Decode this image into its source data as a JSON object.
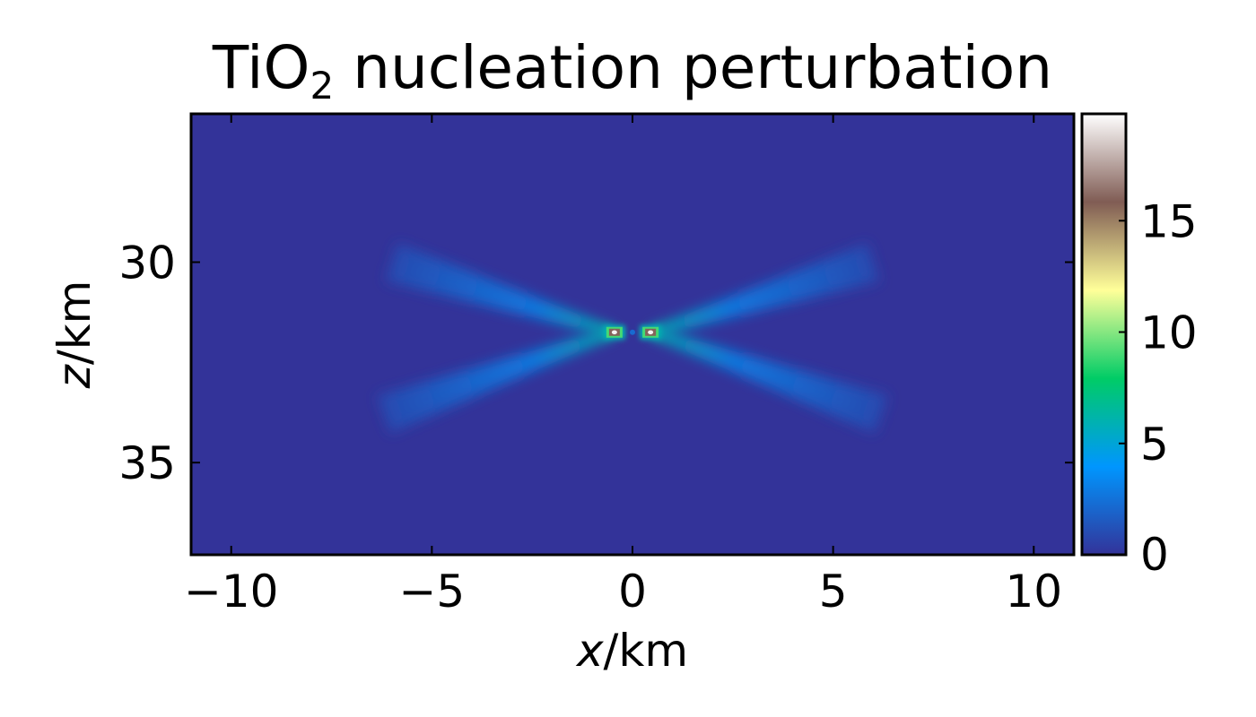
{
  "chart_data": {
    "type": "heatmap",
    "title": {
      "prefix": "TiO",
      "subscript": "2",
      "suffix": " nucleation perturbation"
    },
    "xlabel": {
      "variable": "x",
      "unit": "/km"
    },
    "ylabel": {
      "variable": "z",
      "unit": "/km"
    },
    "xlim": [
      -11,
      11
    ],
    "ylim": [
      37.3,
      26.3
    ],
    "y_axis_inverted": true,
    "xticks": [
      -10,
      -5,
      0,
      5,
      10
    ],
    "xtick_labels": [
      "−10",
      "−5",
      "0",
      "5",
      "10"
    ],
    "yticks": [
      30,
      35
    ],
    "ytick_labels": [
      "30",
      "35"
    ],
    "colorbar": {
      "range": [
        0,
        19.8
      ],
      "ticks": [
        0,
        5,
        10,
        15
      ],
      "tick_labels": [
        "0",
        "5",
        "10",
        "15"
      ],
      "colormap": "terrain",
      "colors": [
        "#333399",
        "#0096fe",
        "#00cc66",
        "#ffff99",
        "#805c54",
        "#ffffff"
      ]
    },
    "field": {
      "description_of_features": "X-shaped plume centered near x=0, z≈31.7 km with two sharp maxima",
      "background_value": 0.0,
      "center": {
        "x": 0.0,
        "z": 31.75
      },
      "peaks": [
        {
          "x": -0.45,
          "z": 31.75,
          "value": 19.5
        },
        {
          "x": 0.45,
          "z": 31.75,
          "value": 19.5
        }
      ],
      "arms": [
        {
          "from": [
            -0.5,
            31.75
          ],
          "to": [
            -6.0,
            30.0
          ],
          "value_near": 6,
          "value_far": 1
        },
        {
          "from": [
            0.5,
            31.75
          ],
          "to": [
            6.0,
            30.0
          ],
          "value_near": 6,
          "value_far": 1
        },
        {
          "from": [
            -0.5,
            31.75
          ],
          "to": [
            -6.2,
            33.8
          ],
          "value_near": 6,
          "value_far": 1
        },
        {
          "from": [
            0.5,
            31.75
          ],
          "to": [
            6.2,
            33.8
          ],
          "value_near": 6,
          "value_far": 1
        }
      ]
    }
  }
}
